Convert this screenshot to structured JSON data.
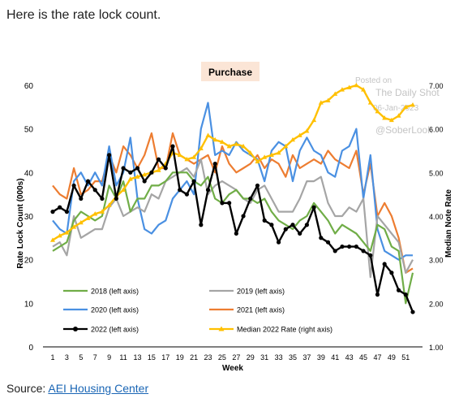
{
  "intro_text": "Here is the rate lock count.",
  "source_label": "Source: ",
  "source_link_text": "AEI Housing Center",
  "watermark": {
    "line1": "Posted on",
    "line2": "The Daily Shot",
    "line3": "06-Jan-2023",
    "line4": "@SoberLook"
  },
  "chart_data": {
    "type": "line",
    "title": "Purchase",
    "xlabel": "Week",
    "ylabel_left": "Rate Lock Count (000s)",
    "ylabel_right": "Median Note Rate",
    "ylim_left": [
      0,
      60
    ],
    "ylim_right": [
      1.0,
      7.0
    ],
    "yticks_left": [
      "0",
      "10",
      "20",
      "30",
      "40",
      "50",
      "60"
    ],
    "yticks_right": [
      "1.00",
      "2.00",
      "3.00",
      "4.00",
      "5.00",
      "6.00",
      "7.00"
    ],
    "x": [
      1,
      2,
      3,
      4,
      5,
      6,
      7,
      8,
      9,
      10,
      11,
      12,
      13,
      14,
      15,
      16,
      17,
      18,
      19,
      20,
      21,
      22,
      23,
      24,
      25,
      26,
      27,
      28,
      29,
      30,
      31,
      32,
      33,
      34,
      35,
      36,
      37,
      38,
      39,
      40,
      41,
      42,
      43,
      44,
      45,
      46,
      47,
      48,
      49,
      50,
      51,
      52
    ],
    "xtick_labels": [
      "1",
      "3",
      "5",
      "7",
      "9",
      "11",
      "13",
      "15",
      "17",
      "19",
      "21",
      "23",
      "25",
      "27",
      "29",
      "31",
      "33",
      "35",
      "37",
      "39",
      "41",
      "43",
      "45",
      "47",
      "49",
      "51"
    ],
    "grid": false,
    "series": [
      {
        "name": "2018 (left axis)",
        "axis": "left",
        "color": "#70ad47",
        "marker": "none",
        "values": [
          22,
          23,
          24,
          29,
          31,
          30,
          29,
          30,
          37,
          34,
          38,
          31,
          34,
          34,
          37,
          37,
          38,
          40,
          40,
          40,
          38,
          37,
          39,
          34,
          33,
          35,
          36,
          34,
          34,
          33,
          34,
          31,
          29,
          28,
          27,
          29,
          30,
          33,
          31,
          29,
          26,
          28,
          27,
          26,
          24,
          22,
          28,
          27,
          23,
          22,
          10,
          17
        ]
      },
      {
        "name": "2019 (left axis)",
        "axis": "left",
        "color": "#a5a5a5",
        "marker": "none",
        "values": [
          23,
          24,
          21,
          30,
          25,
          26,
          27,
          27,
          32,
          34,
          30,
          31,
          32,
          31,
          35,
          34,
          38,
          39,
          40,
          41,
          39,
          43,
          35,
          37,
          38,
          37,
          36,
          34,
          33,
          36,
          37,
          34,
          31,
          31,
          31,
          34,
          38,
          38,
          39,
          33,
          30,
          30,
          32,
          31,
          34,
          16,
          30,
          28,
          26,
          24,
          17,
          20
        ]
      },
      {
        "name": "2020 (left axis)",
        "axis": "left",
        "color": "#4a90e2",
        "marker": "none",
        "values": [
          29,
          27,
          26,
          38,
          40,
          37,
          40,
          37,
          46,
          37,
          40,
          48,
          34,
          27,
          26,
          28,
          29,
          34,
          36,
          38,
          35,
          50,
          56,
          44,
          45,
          44,
          47,
          45,
          44,
          43,
          38,
          45,
          47,
          46,
          38,
          45,
          48,
          45,
          44,
          40,
          39,
          45,
          46,
          50,
          34,
          44,
          27,
          22,
          21,
          20,
          21,
          21
        ]
      },
      {
        "name": "2021 (left axis)",
        "axis": "left",
        "color": "#ed7d31",
        "marker": "none",
        "values": [
          37,
          35,
          34,
          41,
          35,
          36,
          38,
          38,
          44,
          40,
          46,
          44,
          41,
          44,
          49,
          41,
          41,
          49,
          44,
          43,
          42,
          43,
          44,
          40,
          46,
          42,
          40,
          41,
          42,
          44,
          41,
          43,
          42,
          39,
          44,
          41,
          42,
          43,
          42,
          45,
          43,
          42,
          41,
          45,
          35,
          42,
          30,
          33,
          30,
          25,
          17,
          18
        ]
      },
      {
        "name": "2022 (left axis)",
        "axis": "left",
        "color": "#000000",
        "marker": "circle",
        "values": [
          31,
          32,
          31,
          37,
          34,
          38,
          36,
          34,
          44,
          34,
          41,
          40,
          41,
          38,
          40,
          43,
          41,
          46,
          36,
          35,
          38,
          28,
          36,
          42,
          33,
          33,
          26,
          30,
          34,
          37,
          29,
          28,
          24,
          27,
          28,
          26,
          28,
          32,
          25,
          24,
          22,
          23,
          23,
          23,
          22,
          21,
          12,
          19,
          17,
          13,
          12,
          8
        ]
      },
      {
        "name": "Median 2022 Rate (right axis)",
        "axis": "right",
        "color": "#ffc000",
        "marker": "triangle",
        "values": [
          3.45,
          3.55,
          3.62,
          3.75,
          3.85,
          3.95,
          4.05,
          4.1,
          4.25,
          4.45,
          4.6,
          4.85,
          4.9,
          4.95,
          5.0,
          5.05,
          5.2,
          5.45,
          5.4,
          5.3,
          5.35,
          5.55,
          5.85,
          5.75,
          5.7,
          5.6,
          5.65,
          5.6,
          5.45,
          5.25,
          5.35,
          5.4,
          5.45,
          5.6,
          5.75,
          5.85,
          5.95,
          6.2,
          6.6,
          6.65,
          6.8,
          6.9,
          6.95,
          7.0,
          6.9,
          6.6,
          6.4,
          6.25,
          6.2,
          6.3,
          6.5,
          6.55
        ]
      }
    ]
  }
}
